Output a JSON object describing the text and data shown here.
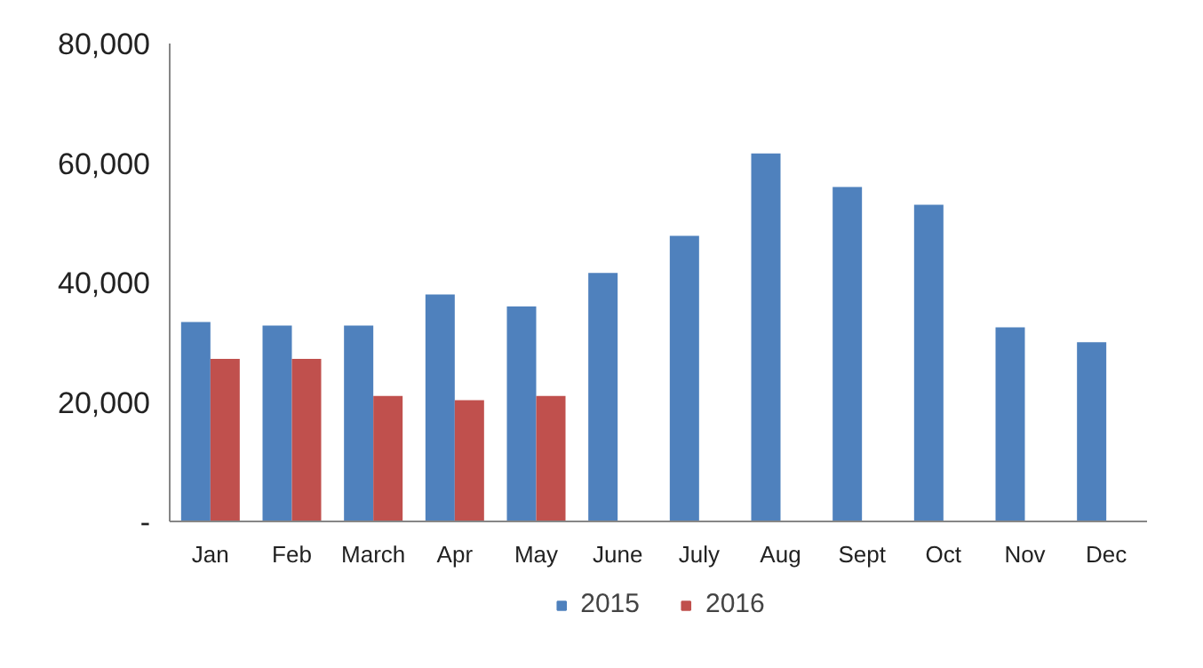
{
  "chart_data": {
    "type": "bar",
    "categories": [
      "Jan",
      "Feb",
      "March",
      "Apr",
      "May",
      "June",
      "July",
      "Aug",
      "Sept",
      "Oct",
      "Nov",
      "Dec"
    ],
    "series": [
      {
        "name": "2015",
        "color": "#4f81bd",
        "values": [
          33400,
          32800,
          32800,
          38000,
          36000,
          41600,
          47800,
          61600,
          56000,
          53000,
          32500,
          30000
        ]
      },
      {
        "name": "2016",
        "color": "#c0504d",
        "values": [
          27200,
          27200,
          21000,
          20300,
          21000,
          null,
          null,
          null,
          null,
          null,
          null,
          null
        ]
      }
    ],
    "ylim": [
      0,
      80000
    ],
    "yticks": [
      {
        "value": 0,
        "label": "-"
      },
      {
        "value": 20000,
        "label": "20,000"
      },
      {
        "value": 40000,
        "label": "40,000"
      },
      {
        "value": 60000,
        "label": "60,000"
      },
      {
        "value": 80000,
        "label": "80,000"
      }
    ],
    "grid": false,
    "legend": "bottom"
  }
}
